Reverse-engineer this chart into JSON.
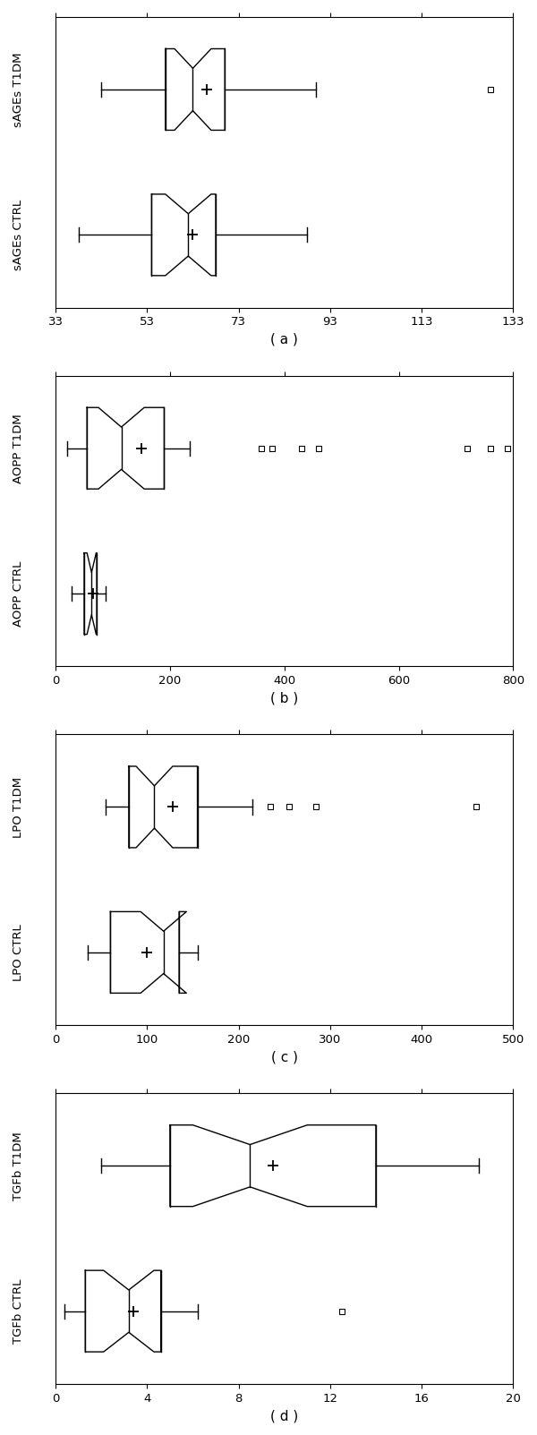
{
  "panels": [
    {
      "label": "( a )",
      "ylabels": [
        "sAGEs CTRL",
        "sAGEs T1DM"
      ],
      "xlim": [
        33,
        133
      ],
      "xticks": [
        33,
        53,
        73,
        93,
        113,
        133
      ],
      "boxes": [
        {
          "name": "sAGEs CTRL",
          "whislo": 38,
          "q1": 54,
          "med": 62,
          "mean": 63,
          "q3": 68,
          "whishi": 88,
          "fliers": [],
          "notch_lower": 57,
          "notch_upper": 67
        },
        {
          "name": "sAGEs T1DM",
          "whislo": 43,
          "q1": 57,
          "med": 63,
          "mean": 66,
          "q3": 70,
          "whishi": 90,
          "fliers": [
            128
          ],
          "notch_lower": 59,
          "notch_upper": 67
        }
      ]
    },
    {
      "label": "( b )",
      "ylabels": [
        "AOPP CTRL",
        "AOPP T1DM"
      ],
      "xlim": [
        0,
        800
      ],
      "xticks": [
        0,
        200,
        400,
        600,
        800
      ],
      "boxes": [
        {
          "name": "AOPP CTRL",
          "whislo": 28,
          "q1": 50,
          "med": 63,
          "mean": 65,
          "q3": 72,
          "whishi": 88,
          "fliers": [],
          "notch_lower": 55,
          "notch_upper": 71
        },
        {
          "name": "AOPP T1DM",
          "whislo": 20,
          "q1": 55,
          "med": 115,
          "mean": 150,
          "q3": 190,
          "whishi": 235,
          "fliers": [
            360,
            378,
            430,
            460,
            720,
            760,
            790
          ],
          "notch_lower": 75,
          "notch_upper": 155
        }
      ]
    },
    {
      "label": "( c )",
      "ylabels": [
        "LPO CTRL",
        "LPO T1DM"
      ],
      "xlim": [
        0,
        500
      ],
      "xticks": [
        0,
        100,
        200,
        300,
        400,
        500
      ],
      "boxes": [
        {
          "name": "LPO CTRL",
          "whislo": 35,
          "q1": 60,
          "med": 118,
          "mean": 100,
          "q3": 135,
          "whishi": 155,
          "fliers": [],
          "notch_lower": 93,
          "notch_upper": 143
        },
        {
          "name": "LPO T1DM",
          "whislo": 55,
          "q1": 80,
          "med": 108,
          "mean": 128,
          "q3": 155,
          "whishi": 215,
          "fliers": [
            235,
            255,
            285,
            460
          ],
          "notch_lower": 88,
          "notch_upper": 128
        }
      ]
    },
    {
      "label": "( d )",
      "ylabels": [
        "TGFb CTRL",
        "TGFb T1DM"
      ],
      "xlim": [
        0,
        20
      ],
      "xticks": [
        0,
        4,
        8,
        12,
        16,
        20
      ],
      "boxes": [
        {
          "name": "TGFb CTRL",
          "whislo": 0.4,
          "q1": 1.3,
          "med": 3.2,
          "mean": 3.4,
          "q3": 4.6,
          "whishi": 6.2,
          "fliers": [
            12.5
          ],
          "notch_lower": 2.1,
          "notch_upper": 4.3
        },
        {
          "name": "TGFb T1DM",
          "whislo": 2.0,
          "q1": 5.0,
          "med": 8.5,
          "mean": 9.5,
          "q3": 14.0,
          "whishi": 18.5,
          "fliers": [],
          "notch_lower": 6.0,
          "notch_upper": 11.0
        }
      ]
    }
  ]
}
